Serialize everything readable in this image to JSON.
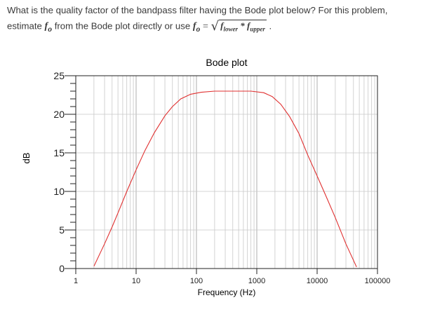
{
  "question": {
    "line1": "What is the quality factor of the bandpass filter having the Bode plot below? For this problem,",
    "line2_prefix": "estimate",
    "fo_symbol": "f",
    "fo_sub": "o",
    "line2_mid": "from the Bode plot directly or use",
    "equals": "=",
    "radicand_f": "f",
    "radicand_lower": "lower",
    "radicand_star": "*",
    "radicand_upper": "upper",
    "line2_end": "."
  },
  "chart_data": {
    "type": "line",
    "title": "Bode plot",
    "xlabel": "Frequency (Hz)",
    "ylabel": "dB",
    "xscale": "log",
    "xlim": [
      1,
      100000
    ],
    "ylim": [
      0,
      25
    ],
    "xticks": [
      "1",
      "10",
      "100",
      "1000",
      "10000",
      "100000"
    ],
    "yticks": [
      "0",
      "5",
      "10",
      "15",
      "20",
      "25"
    ],
    "grid": true,
    "series": [
      {
        "color": "#e03030",
        "x": [
          2,
          3,
          4,
          5,
          7,
          10,
          14,
          20,
          30,
          40,
          55,
          80,
          120,
          200,
          400,
          800,
          1300,
          1800,
          2500,
          3500,
          5000,
          7000,
          10000,
          14000,
          20000,
          30000,
          45000
        ],
        "y": [
          0.3,
          3.2,
          5.4,
          7.2,
          10.0,
          12.8,
          15.3,
          17.6,
          19.8,
          21.0,
          22.0,
          22.6,
          22.85,
          23.0,
          23.0,
          23.0,
          22.8,
          22.3,
          21.3,
          19.7,
          17.5,
          14.7,
          12.0,
          9.4,
          6.6,
          3.2,
          0.2
        ]
      }
    ]
  }
}
